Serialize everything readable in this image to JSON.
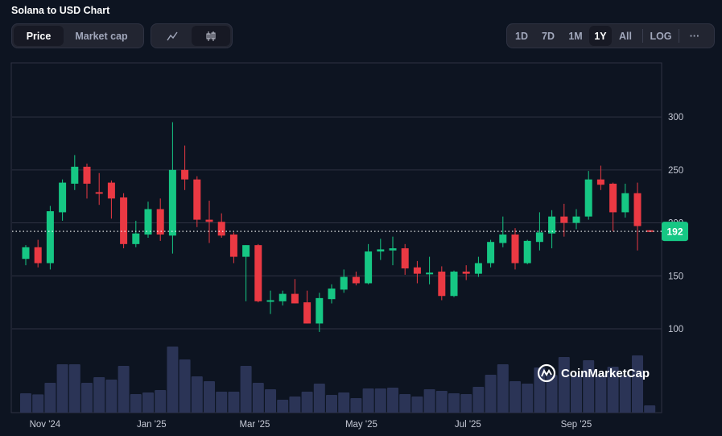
{
  "header": {
    "title": "Solana to USD Chart"
  },
  "metric_toggle": [
    {
      "label": "Price",
      "active": true
    },
    {
      "label": "Market cap",
      "active": false
    }
  ],
  "chart_type_toggle": [
    {
      "icon": "line-chart-icon",
      "active": false
    },
    {
      "icon": "candlestick-icon",
      "active": true
    }
  ],
  "range_buttons": [
    {
      "label": "1D"
    },
    {
      "label": "7D"
    },
    {
      "label": "1M"
    },
    {
      "label": "1Y",
      "active": true
    },
    {
      "label": "All"
    }
  ],
  "log_label": "LOG",
  "more_label": "···",
  "watermark": "CoinMarketCap",
  "colors": {
    "up": "#16c784",
    "down": "#ea3943",
    "volume": "#2b3456",
    "background": "#0d1421",
    "grid": "#2e3242"
  },
  "chart_data": {
    "type": "candlestick",
    "title": "Solana to USD Chart",
    "interval": "weekly",
    "ylim": [
      60,
      330
    ],
    "y_ticks": [
      100,
      150,
      200,
      250,
      300
    ],
    "y_tick_labels": [
      "100",
      "150",
      "200",
      "250",
      "300"
    ],
    "x_ticks": [
      {
        "date": "2024-11-01",
        "label": "Nov '24"
      },
      {
        "date": "2025-01-01",
        "label": "Jan '25"
      },
      {
        "date": "2025-03-01",
        "label": "Mar '25"
      },
      {
        "date": "2025-05-01",
        "label": "May '25"
      },
      {
        "date": "2025-07-01",
        "label": "Jul '25"
      },
      {
        "date": "2025-09-01",
        "label": "Sep '25"
      }
    ],
    "current_price": 192,
    "current_price_label": "192",
    "grid": true,
    "volume_units": "relative",
    "candles_columns": [
      "date",
      "open",
      "high",
      "low",
      "close",
      "volume"
    ],
    "candles": [
      [
        "2024-10-21",
        166,
        179,
        160,
        177,
        72
      ],
      [
        "2024-10-28",
        177,
        184,
        158,
        162,
        68
      ],
      [
        "2024-11-04",
        162,
        216,
        156,
        211,
        111
      ],
      [
        "2024-11-11",
        210,
        241,
        202,
        238,
        180
      ],
      [
        "2024-11-18",
        237,
        264,
        231,
        253,
        180
      ],
      [
        "2024-11-25",
        253,
        256,
        223,
        237,
        111
      ],
      [
        "2024-12-02",
        229,
        247,
        217,
        228,
        132
      ],
      [
        "2024-12-09",
        238,
        240,
        204,
        223,
        123
      ],
      [
        "2024-12-16",
        224,
        228,
        176,
        180,
        174
      ],
      [
        "2024-12-23",
        180,
        202,
        177,
        190,
        69
      ],
      [
        "2024-12-30",
        189,
        220,
        186,
        213,
        75
      ],
      [
        "2025-01-06",
        213,
        223,
        183,
        189,
        84
      ],
      [
        "2025-01-13",
        188,
        295,
        171,
        250,
        246
      ],
      [
        "2025-01-20",
        250,
        273,
        231,
        241,
        198
      ],
      [
        "2025-01-27",
        241,
        244,
        196,
        203,
        135
      ],
      [
        "2025-02-03",
        203,
        221,
        181,
        201,
        117
      ],
      [
        "2025-02-10",
        201,
        209,
        186,
        188,
        78
      ],
      [
        "2025-02-17",
        189,
        191,
        162,
        168,
        78
      ],
      [
        "2025-02-24",
        168,
        179,
        126,
        179,
        174
      ],
      [
        "2025-03-03",
        179,
        180,
        125,
        126,
        111
      ],
      [
        "2025-03-10",
        127,
        136,
        114,
        127,
        87
      ],
      [
        "2025-03-17",
        126,
        136,
        122,
        133,
        48
      ],
      [
        "2025-03-24",
        133,
        147,
        124,
        124,
        60
      ],
      [
        "2025-03-31",
        125,
        136,
        105,
        105,
        78
      ],
      [
        "2025-04-07",
        105,
        134,
        97,
        129,
        108
      ],
      [
        "2025-04-14",
        128,
        142,
        124,
        138,
        66
      ],
      [
        "2025-04-21",
        137,
        156,
        134,
        149,
        75
      ],
      [
        "2025-04-28",
        149,
        154,
        141,
        143,
        54
      ],
      [
        "2025-05-05",
        143,
        180,
        142,
        173,
        90
      ],
      [
        "2025-05-12",
        173,
        185,
        165,
        175,
        90
      ],
      [
        "2025-05-19",
        174,
        187,
        160,
        176,
        93
      ],
      [
        "2025-05-26",
        176,
        180,
        151,
        157,
        69
      ],
      [
        "2025-06-02",
        158,
        164,
        143,
        152,
        60
      ],
      [
        "2025-06-09",
        152,
        168,
        142,
        153,
        87
      ],
      [
        "2025-06-16",
        154,
        159,
        127,
        131,
        81
      ],
      [
        "2025-06-23",
        131,
        155,
        130,
        154,
        72
      ],
      [
        "2025-06-30",
        154,
        160,
        146,
        152,
        69
      ],
      [
        "2025-07-07",
        152,
        168,
        149,
        162,
        96
      ],
      [
        "2025-07-14",
        162,
        184,
        158,
        182,
        141
      ],
      [
        "2025-07-21",
        181,
        206,
        177,
        189,
        180
      ],
      [
        "2025-07-28",
        189,
        195,
        156,
        162,
        117
      ],
      [
        "2025-08-04",
        162,
        184,
        161,
        183,
        108
      ],
      [
        "2025-08-11",
        182,
        210,
        174,
        191,
        168
      ],
      [
        "2025-08-18",
        190,
        212,
        176,
        206,
        140
      ],
      [
        "2025-08-25",
        206,
        218,
        187,
        200,
        207
      ],
      [
        "2025-09-01",
        200,
        213,
        194,
        206,
        140
      ],
      [
        "2025-09-08",
        206,
        249,
        203,
        241,
        195
      ],
      [
        "2025-09-15",
        241,
        254,
        231,
        236,
        140
      ],
      [
        "2025-09-22",
        237,
        238,
        192,
        210,
        171
      ],
      [
        "2025-09-29",
        210,
        237,
        205,
        228,
        140
      ],
      [
        "2025-10-06",
        228,
        238,
        174,
        197,
        213
      ],
      [
        "2025-10-13",
        193,
        193,
        192,
        192,
        27
      ]
    ]
  }
}
